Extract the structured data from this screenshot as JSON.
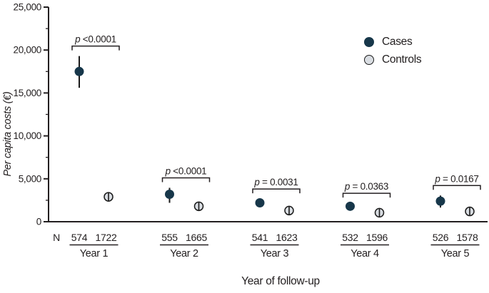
{
  "chart_data": {
    "type": "scatter",
    "title": "",
    "xlabel": "Year of follow-up",
    "ylabel": "Per capita costs (€)",
    "ylim": [
      0,
      25000
    ],
    "ytick_interval": 5000,
    "ytick_minor_interval": 2500,
    "ytick_labels": [
      "0",
      "5,000",
      "10,000",
      "15,000",
      "20,000",
      "25,000"
    ],
    "grid": false,
    "legend_position": "upper right",
    "legend": [
      "Cases",
      "Controls"
    ],
    "categories": [
      "Year 1",
      "Year 2",
      "Year 3",
      "Year 4",
      "Year 5"
    ],
    "n_row_label": "N",
    "series": [
      {
        "name": "Cases",
        "color": "#17374a",
        "values": [
          17500,
          3200,
          2200,
          1800,
          2400
        ],
        "ci_low": [
          15600,
          2200,
          1700,
          1400,
          1650
        ],
        "ci_high": [
          19300,
          3950,
          2650,
          2150,
          3050
        ],
        "n": [
          "574",
          "555",
          "541",
          "532",
          "526"
        ]
      },
      {
        "name": "Controls",
        "color": "#d9dde2",
        "values": [
          2900,
          1800,
          1300,
          1050,
          1200
        ],
        "ci_low": [
          2350,
          1300,
          800,
          550,
          700
        ],
        "ci_high": [
          3450,
          2300,
          1800,
          1550,
          1700
        ],
        "n": [
          "1722",
          "1665",
          "1623",
          "1596",
          "1578"
        ]
      }
    ],
    "p_values": [
      "p <0.0001",
      "p <0.0001",
      "p = 0.0031",
      "p = 0.0363",
      "p = 0.0167"
    ]
  },
  "colors": {
    "axis": "#231f20",
    "text": "#242021",
    "error_bar": "#1a1a1a",
    "cases_fill": "#17374a",
    "controls_fill": "#d9dde2",
    "controls_stroke": "#1b1b1b"
  }
}
